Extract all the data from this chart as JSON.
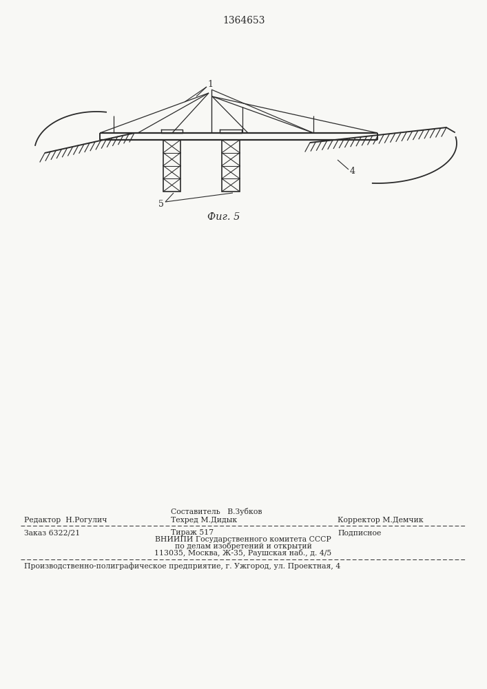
{
  "patent_number": "1364653",
  "fig_label": "Фиг. 5",
  "label_1": "1",
  "label_4": "4",
  "label_5": "5",
  "footer_editor": "Редактор  Н.Рогулич",
  "footer_sostavitel": "Составитель   В.Зубков",
  "footer_tehred": "Техред М.Дидык",
  "footer_korrektor": "Корректор М.Демчик",
  "footer_order": "Заказ 6322/21",
  "footer_tirazh": "Тираж 517",
  "footer_podpisnoe": "Подписное",
  "footer_vniipи": "ВНИИПИ Государственного комитета СССР",
  "footer_dela": "по делам изобретений и открытий",
  "footer_address": "113035, Москва, Ж-35, Раушская наб., д. 4/5",
  "footer_enterprise": "Производственно-полиграфическое предприятие, г. Ужгород, ул. Проектная, 4",
  "bg_color": "#f8f8f5",
  "line_color": "#2a2a2a",
  "text_color": "#2a2a2a"
}
